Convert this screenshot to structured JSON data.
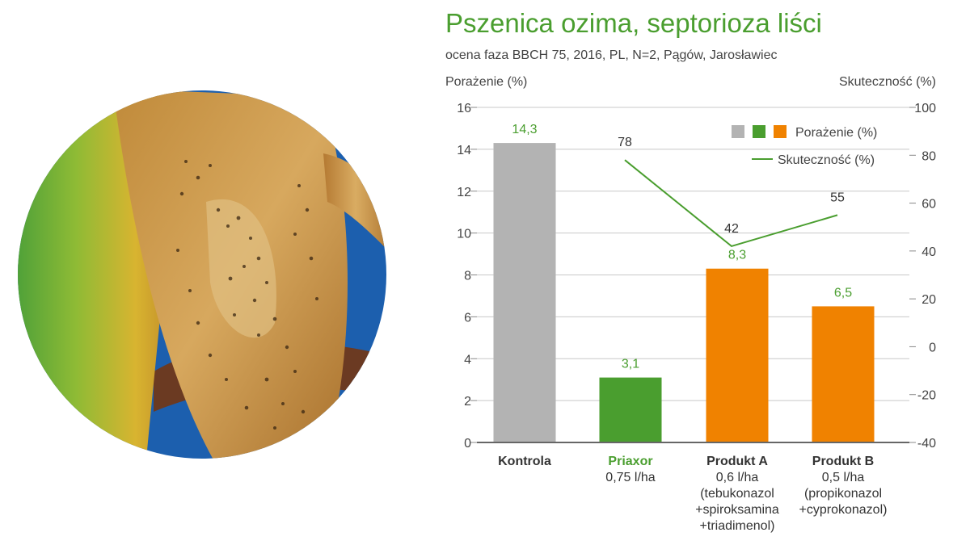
{
  "chart_data": {
    "type": "bar",
    "title": "Pszenica ozima, septorioza liści",
    "subtitle": "ocena faza BBCH 75, 2016, PL, N=2, Pągów, Jarosławiec",
    "ylabel": "Porażenie (%)",
    "y2label": "Skuteczność (%)",
    "ylim": [
      0,
      16
    ],
    "y2lim": [
      -40,
      100
    ],
    "yticks": [
      "0",
      "2",
      "4",
      "6",
      "8",
      "10",
      "12",
      "14",
      "16"
    ],
    "y2ticks": [
      "-40",
      "-20",
      "0",
      "20",
      "40",
      "60",
      "80",
      "100"
    ],
    "categories": [
      {
        "name": "Kontrola",
        "desc": ""
      },
      {
        "name": "Priaxor",
        "desc": "0,75 l/ha"
      },
      {
        "name": "Produkt A",
        "desc": "0,6 l/ha\n(tebukonazol\n+spiroksamina\n+triadimenol)"
      },
      {
        "name": "Produkt B",
        "desc": "0,5 l/ha\n(propikonazol\n+cyprokonazol)"
      }
    ],
    "series": [
      {
        "name": "Porażenie (%)",
        "type": "bar",
        "values": [
          14.3,
          3.1,
          8.3,
          6.5
        ],
        "labels": [
          "14,3",
          "3,1",
          "8,3",
          "6,5"
        ],
        "colors": [
          "#b3b3b3",
          "#4a9e2f",
          "#f08200",
          "#f08200"
        ],
        "label_color": "#4a9e2f"
      },
      {
        "name": "Skuteczność (%)",
        "type": "line",
        "axis": "right",
        "points": [
          {
            "category_index": 1,
            "value": 78,
            "label": "78"
          },
          {
            "category_index": 2,
            "value": 42,
            "label": "42"
          },
          {
            "category_index": 3,
            "value": 55,
            "label": "55"
          }
        ],
        "color": "#4a9e2f"
      }
    ],
    "legend": {
      "position": "top-right",
      "bar_entry": "Porażenie (%)",
      "bar_swatches": [
        "#b3b3b3",
        "#4a9e2f",
        "#f08200"
      ],
      "line_entry": "Skuteczność (%)"
    }
  }
}
